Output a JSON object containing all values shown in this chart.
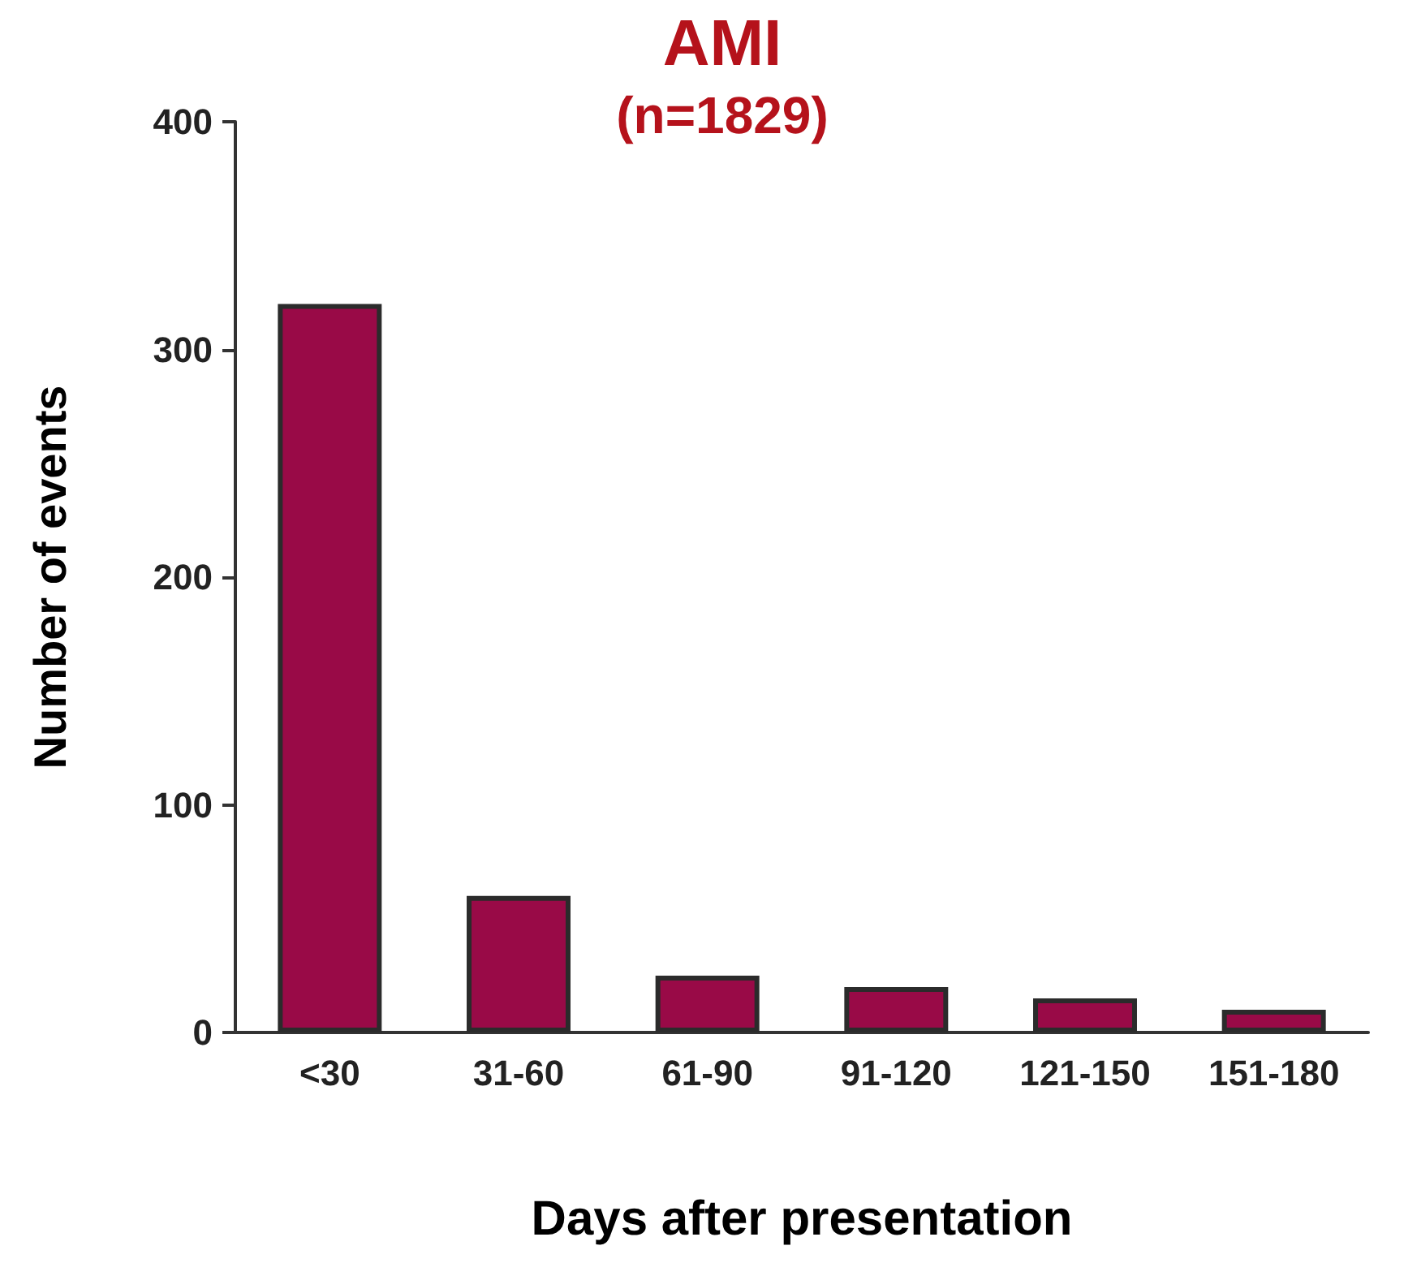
{
  "chart_data": {
    "type": "bar",
    "title": "AMI",
    "subtitle": "(n=1829)",
    "xlabel": "Days after presentation",
    "ylabel": "Number of events",
    "categories": [
      "<30",
      "31-60",
      "61-90",
      "91-120",
      "121-150",
      "151-180"
    ],
    "values": [
      320,
      60,
      25,
      20,
      15,
      10
    ],
    "color": "#990a47",
    "ylim": [
      0,
      400
    ],
    "yticks": [
      0,
      100,
      200,
      300,
      400
    ]
  }
}
